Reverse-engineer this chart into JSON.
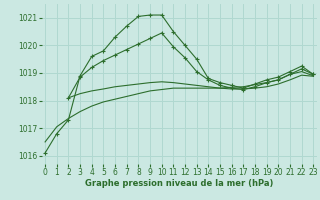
{
  "xlabel": "Graphe pression niveau de la mer (hPa)",
  "background_color": "#cbe8e2",
  "grid_color": "#b0d8d0",
  "line_color": "#2d6e2d",
  "ylim": [
    1015.7,
    1021.5
  ],
  "xlim": [
    -0.3,
    23.3
  ],
  "yticks": [
    1016,
    1017,
    1018,
    1019,
    1020,
    1021
  ],
  "xticks": [
    0,
    1,
    2,
    3,
    4,
    5,
    6,
    7,
    8,
    9,
    10,
    11,
    12,
    13,
    14,
    15,
    16,
    17,
    18,
    19,
    20,
    21,
    22,
    23
  ],
  "series": [
    {
      "x": [
        0,
        1,
        2,
        3,
        4,
        5,
        6,
        7,
        8,
        9,
        10,
        11,
        12,
        13,
        14,
        15,
        16,
        17,
        18,
        19,
        20,
        21,
        22,
        23
      ],
      "y": [
        1016.1,
        1016.8,
        1017.3,
        1018.9,
        1019.6,
        1019.8,
        1020.3,
        1020.7,
        1021.05,
        1021.1,
        1021.1,
        1020.5,
        1020.0,
        1019.5,
        1018.8,
        1018.65,
        1018.55,
        1018.45,
        1018.6,
        1018.75,
        1018.85,
        1019.05,
        1019.25,
        1018.95
      ],
      "marker": "+"
    },
    {
      "x": [
        2,
        3,
        4,
        5,
        6,
        7,
        8,
        9,
        10,
        11,
        12,
        13,
        14,
        15,
        16,
        17,
        18,
        19,
        20,
        21,
        22,
        23
      ],
      "y": [
        1018.1,
        1018.85,
        1019.2,
        1019.45,
        1019.65,
        1019.85,
        1020.05,
        1020.25,
        1020.45,
        1019.95,
        1019.55,
        1019.05,
        1018.75,
        1018.55,
        1018.45,
        1018.4,
        1018.5,
        1018.65,
        1018.75,
        1018.95,
        1019.15,
        1018.95
      ],
      "marker": "+"
    },
    {
      "x": [
        0,
        1,
        2,
        3,
        4,
        5,
        6,
        7,
        8,
        9,
        10,
        11,
        12,
        13,
        14,
        15,
        16,
        17,
        18,
        19,
        20,
        21,
        22,
        23
      ],
      "y": [
        1016.5,
        1017.05,
        1017.35,
        1017.6,
        1017.8,
        1017.95,
        1018.05,
        1018.15,
        1018.25,
        1018.35,
        1018.4,
        1018.45,
        1018.45,
        1018.45,
        1018.45,
        1018.45,
        1018.48,
        1018.5,
        1018.58,
        1018.65,
        1018.75,
        1018.95,
        1019.05,
        1018.9
      ],
      "marker": null
    },
    {
      "x": [
        2,
        3,
        4,
        5,
        6,
        7,
        8,
        9,
        10,
        11,
        12,
        13,
        14,
        15,
        16,
        17,
        18,
        19,
        20,
        21,
        22,
        23
      ],
      "y": [
        1018.1,
        1018.25,
        1018.35,
        1018.42,
        1018.5,
        1018.55,
        1018.6,
        1018.65,
        1018.68,
        1018.65,
        1018.6,
        1018.55,
        1018.5,
        1018.45,
        1018.42,
        1018.42,
        1018.45,
        1018.5,
        1018.6,
        1018.75,
        1018.92,
        1018.88
      ],
      "marker": null
    }
  ]
}
